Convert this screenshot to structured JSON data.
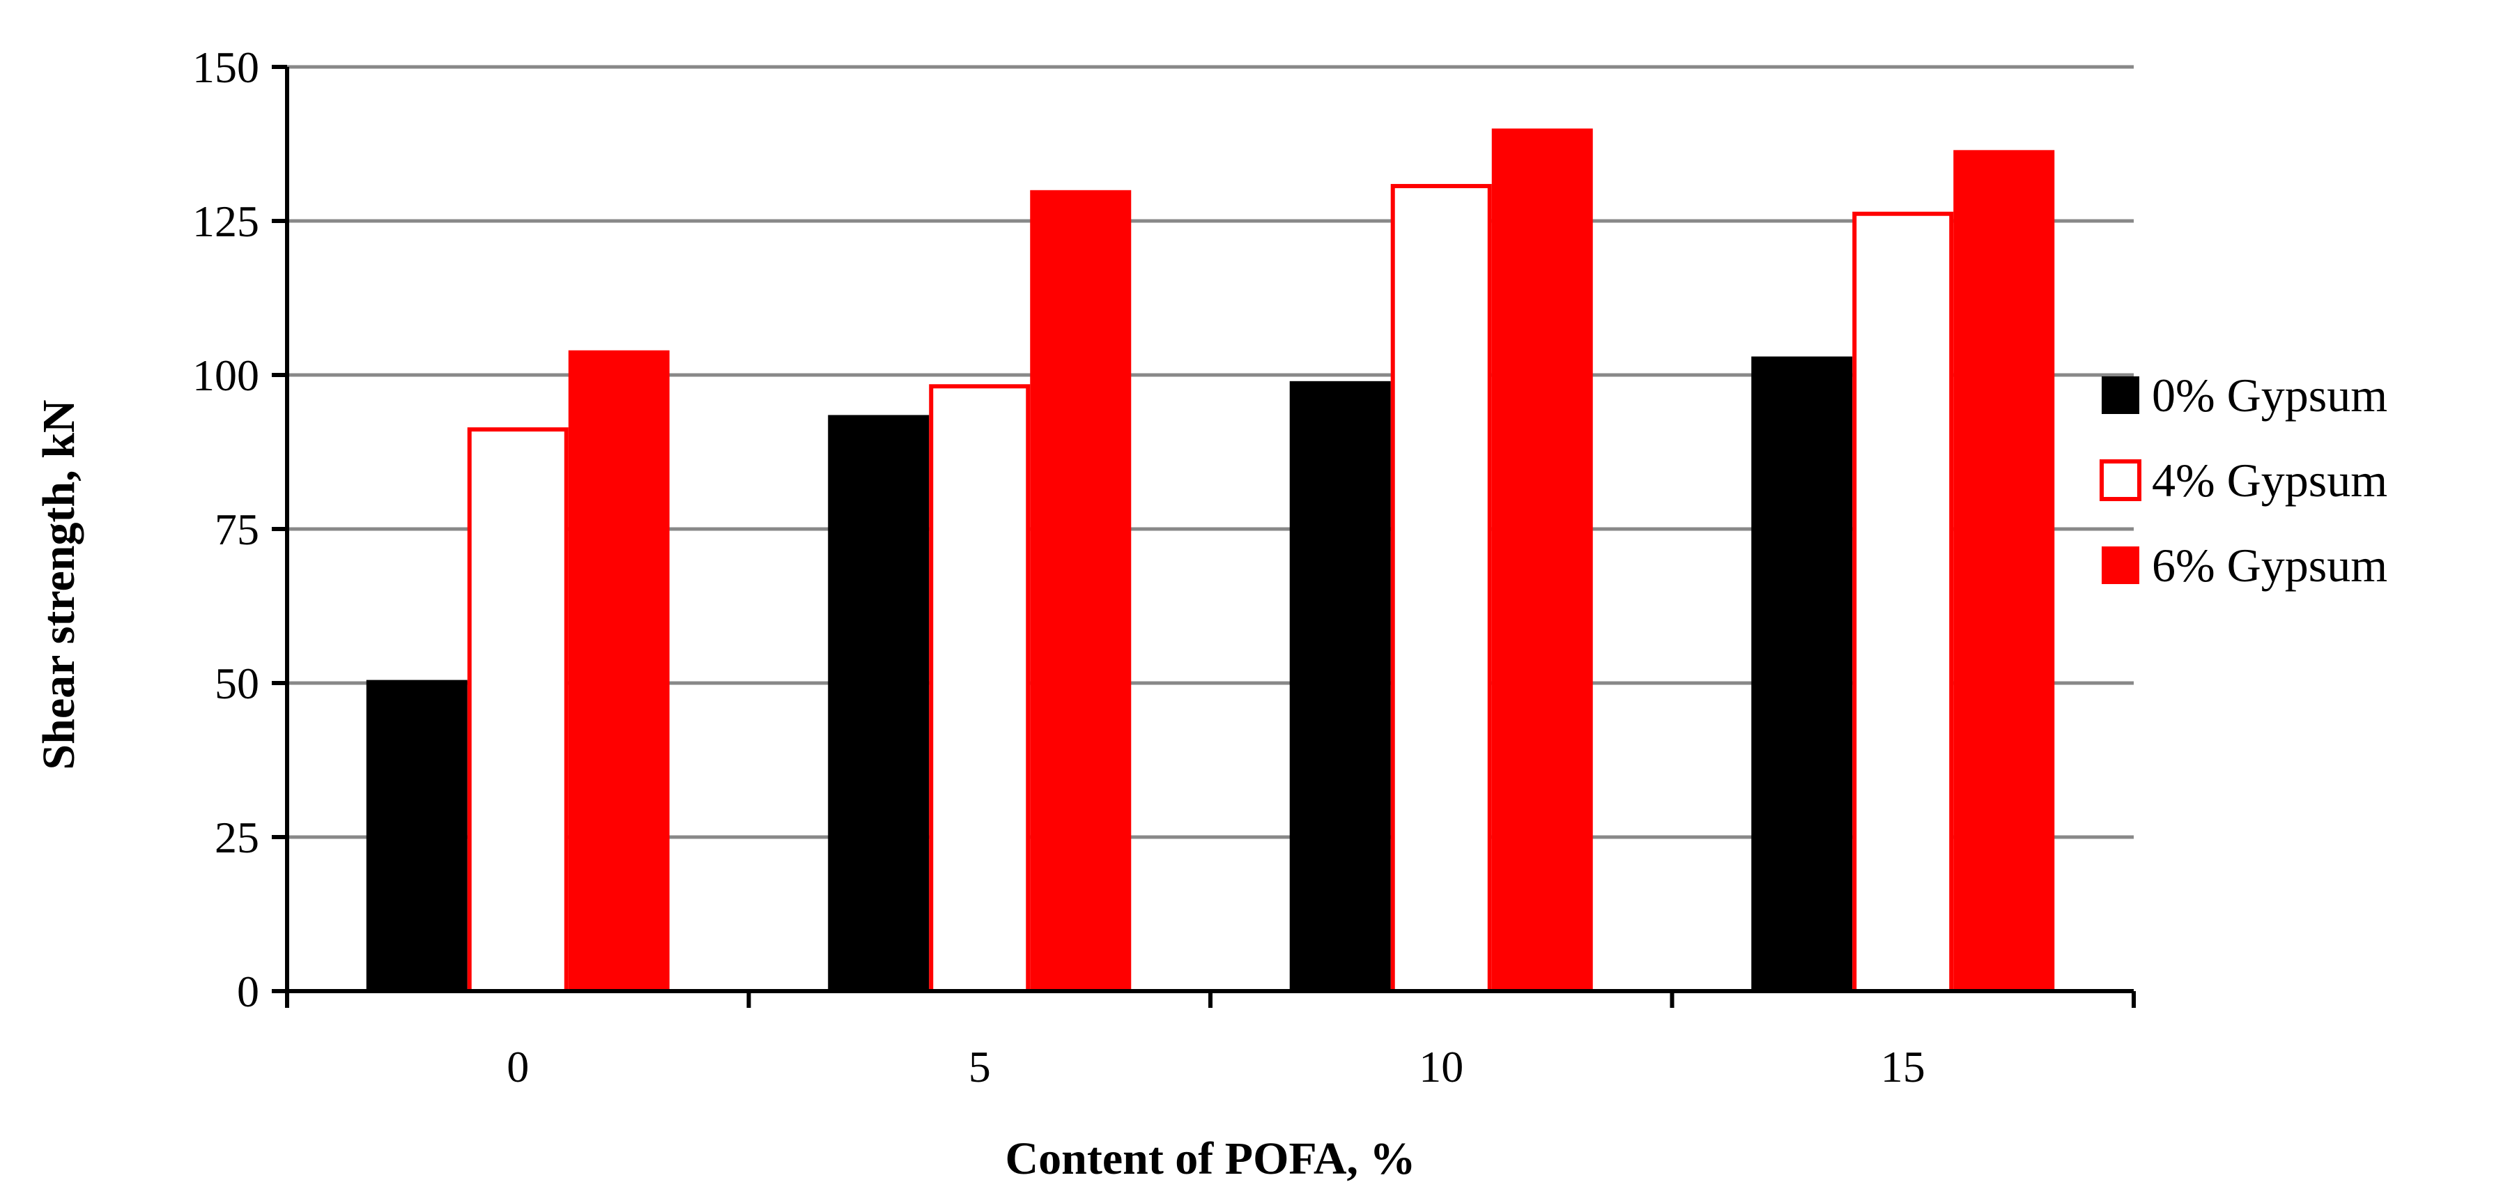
{
  "chart_data": {
    "type": "bar",
    "categories": [
      "0",
      "5",
      "10",
      "15"
    ],
    "series": [
      {
        "name": "0% Gypsum",
        "values": [
          50.5,
          93.5,
          99,
          103
        ],
        "fill": "#000000",
        "stroke": "#000000"
      },
      {
        "name": "4% Gypsum",
        "values": [
          91.5,
          98.5,
          131,
          126.5
        ],
        "fill": "#ffffff",
        "stroke": "#ff0000"
      },
      {
        "name": "6% Gypsum",
        "values": [
          104,
          130,
          140,
          136.5
        ],
        "fill": "#ff0000",
        "stroke": "#ff0000"
      }
    ],
    "xlabel": "Content of POFA, %",
    "ylabel": "Shear strength, kN",
    "ylim": [
      0,
      150
    ],
    "yticks": [
      0,
      25,
      50,
      75,
      100,
      125,
      150
    ],
    "grid": true,
    "legend_position": "right",
    "colors": {
      "grid": "#888888",
      "axis": "#000000"
    }
  }
}
